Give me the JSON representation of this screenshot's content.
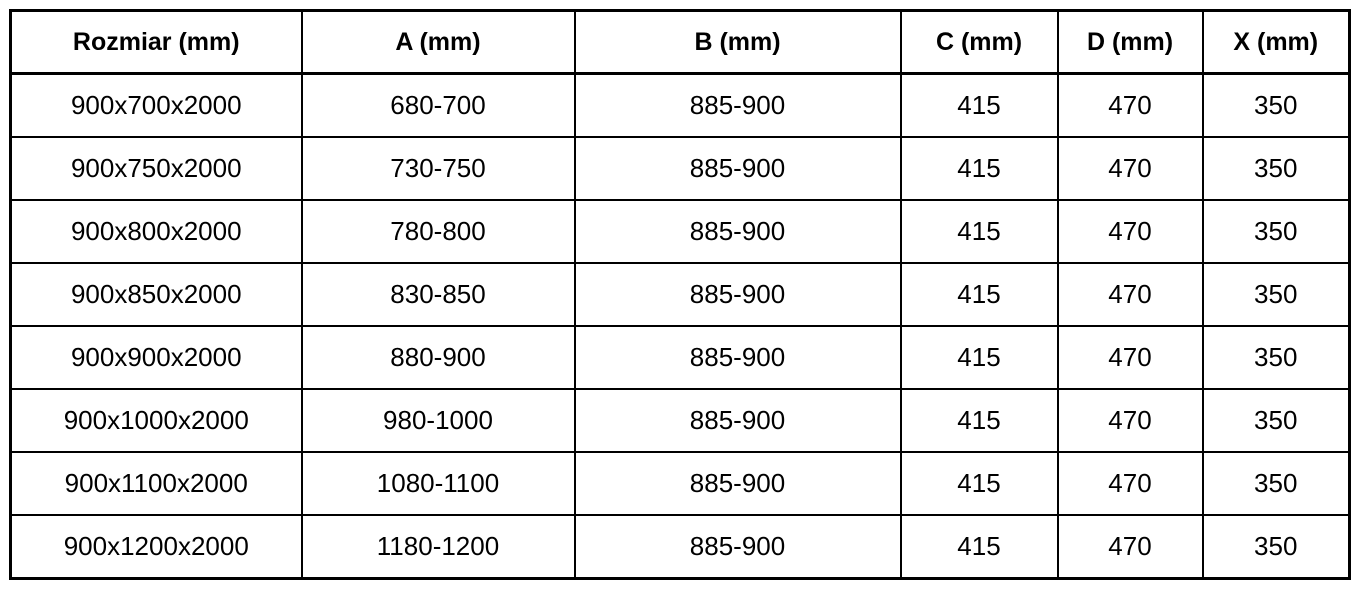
{
  "chart_data": {
    "type": "table",
    "title": "",
    "columns": [
      "Rozmiar (mm)",
      "A (mm)",
      "B (mm)",
      "C (mm)",
      "D (mm)",
      "X (mm)"
    ],
    "rows": [
      [
        "900x700x2000",
        "680-700",
        "885-900",
        "415",
        "470",
        "350"
      ],
      [
        "900x750x2000",
        "730-750",
        "885-900",
        "415",
        "470",
        "350"
      ],
      [
        "900x800x2000",
        "780-800",
        "885-900",
        "415",
        "470",
        "350"
      ],
      [
        "900x850x2000",
        "830-850",
        "885-900",
        "415",
        "470",
        "350"
      ],
      [
        "900x900x2000",
        "880-900",
        "885-900",
        "415",
        "470",
        "350"
      ],
      [
        "900x1000x2000",
        "980-1000",
        "885-900",
        "415",
        "470",
        "350"
      ],
      [
        "900x1100x2000",
        "1080-1100",
        "885-900",
        "415",
        "470",
        "350"
      ],
      [
        "900x1200x2000",
        "1180-1200",
        "885-900",
        "415",
        "470",
        "350"
      ]
    ],
    "layout": {
      "grid": true,
      "header_bold": true,
      "cell_alignment": "center"
    }
  },
  "style": {
    "border_color": "#000000",
    "text_color": "#000000",
    "background_color": "#ffffff"
  }
}
